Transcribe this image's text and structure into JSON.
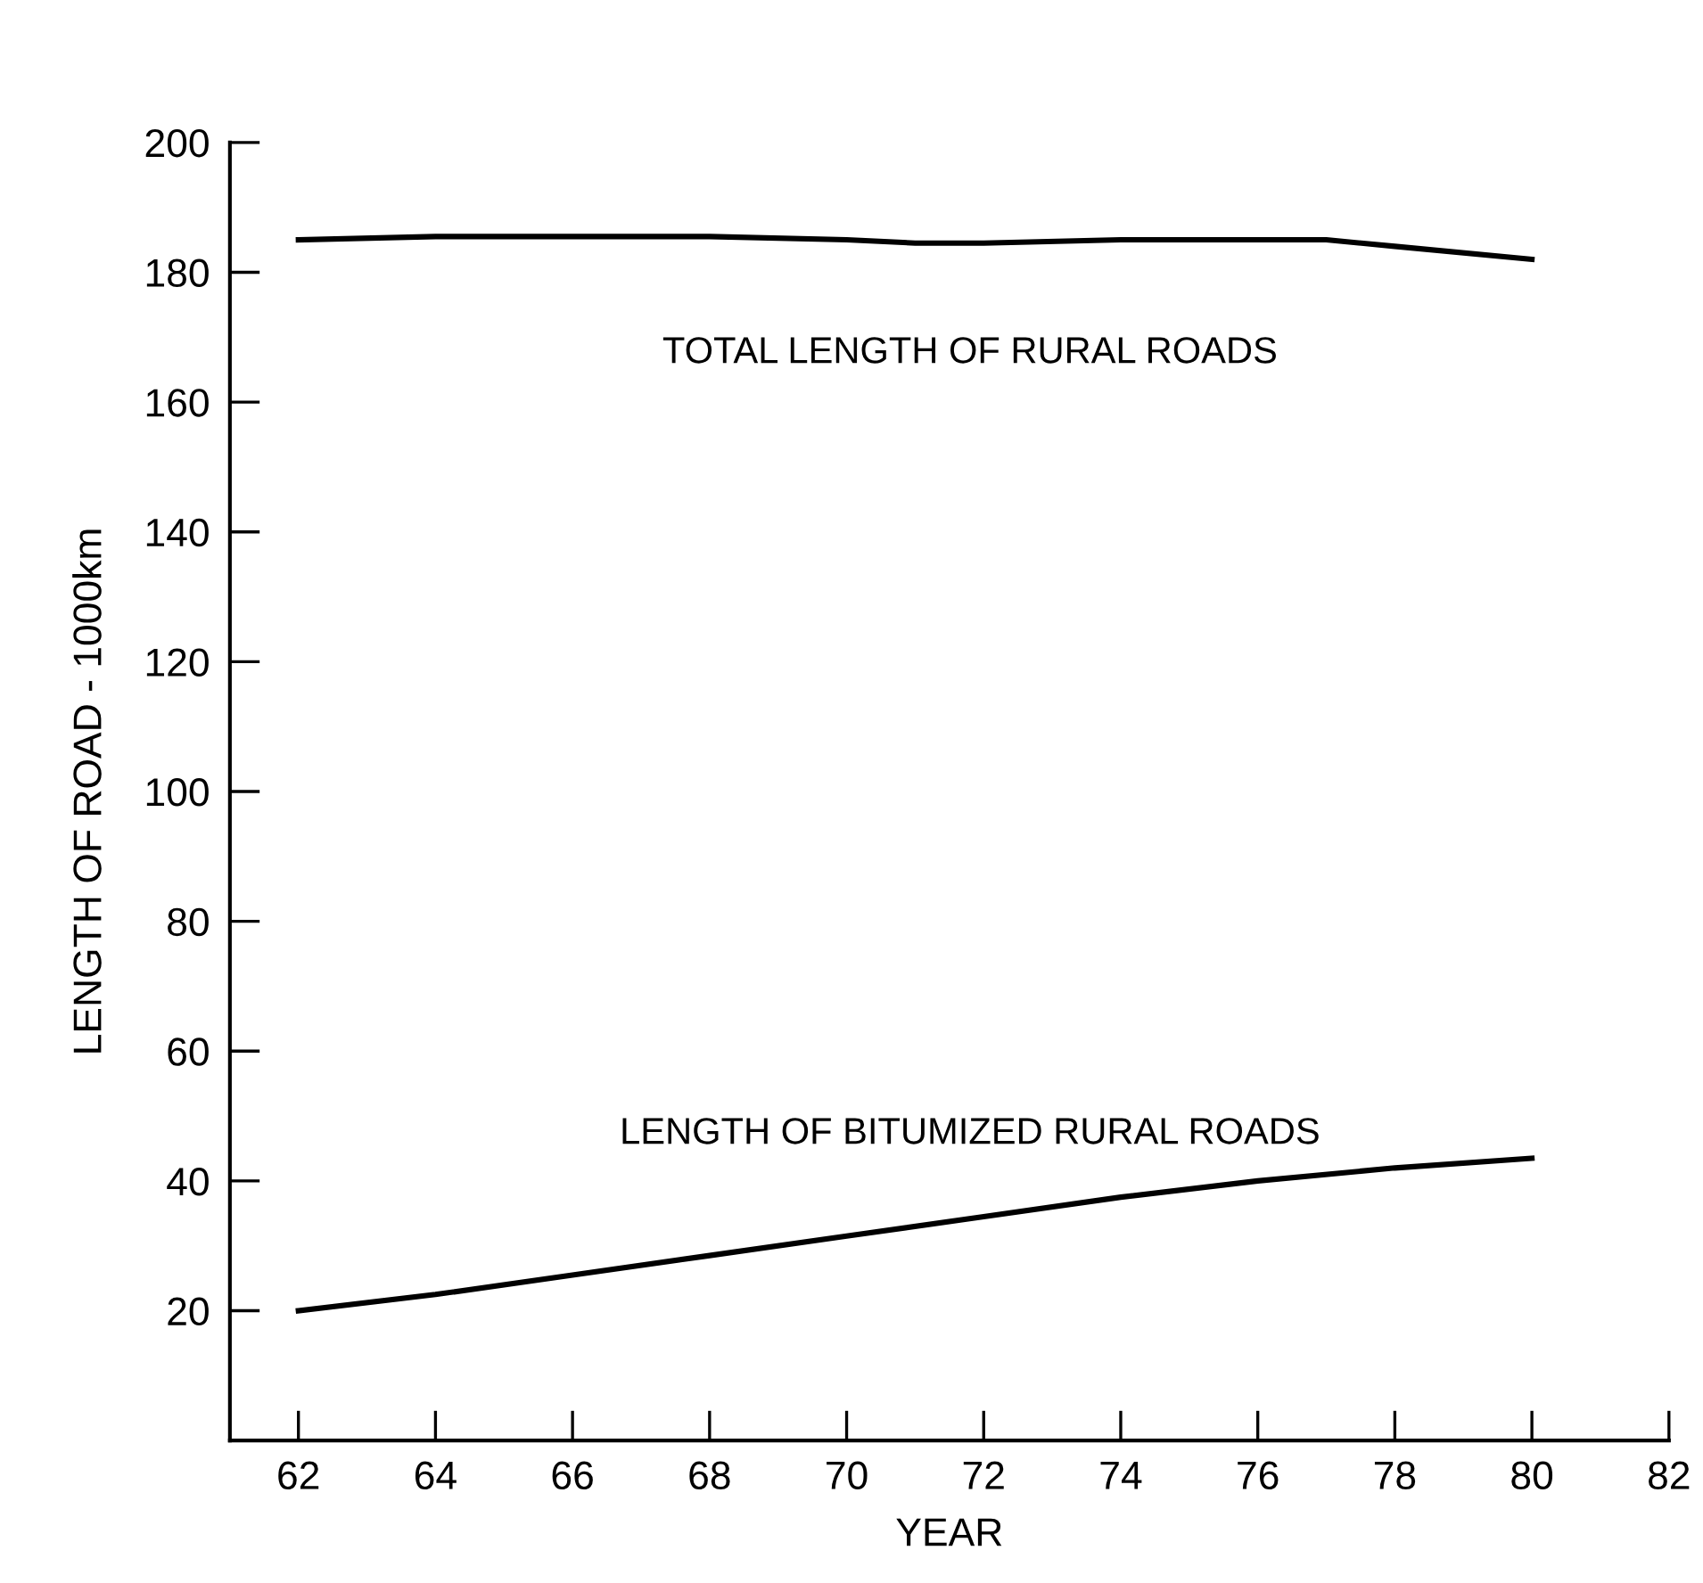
{
  "chart_data": {
    "type": "line",
    "xlabel": "YEAR",
    "ylabel": "LENGTH OF ROAD - 1000km",
    "series": [
      {
        "name": "TOTAL LENGTH OF RURAL ROADS",
        "color": "#000000",
        "x": [
          62,
          64,
          66,
          68,
          70,
          71,
          72,
          74,
          76,
          77,
          78,
          80
        ],
        "values": [
          185,
          185.5,
          185.5,
          185.5,
          185,
          184.5,
          184.5,
          185,
          185,
          185,
          184,
          182
        ]
      },
      {
        "name": "LENGTH OF BITUMIZED RURAL ROADS",
        "color": "#000000",
        "x": [
          62,
          64,
          66,
          68,
          70,
          72,
          74,
          76,
          78,
          80
        ],
        "values": [
          20,
          22.5,
          25.5,
          28.5,
          31.5,
          34.5,
          37.5,
          40,
          42,
          43.5
        ]
      }
    ],
    "xlim": [
      61,
      82
    ],
    "xticks": [
      62,
      64,
      66,
      68,
      70,
      72,
      74,
      76,
      78,
      80,
      82
    ],
    "ylim": [
      0,
      200
    ],
    "yticks": [
      20,
      40,
      60,
      80,
      100,
      120,
      140,
      160,
      180,
      200
    ],
    "grid": false,
    "legend": false,
    "marker": "none",
    "line_style": "solid"
  }
}
